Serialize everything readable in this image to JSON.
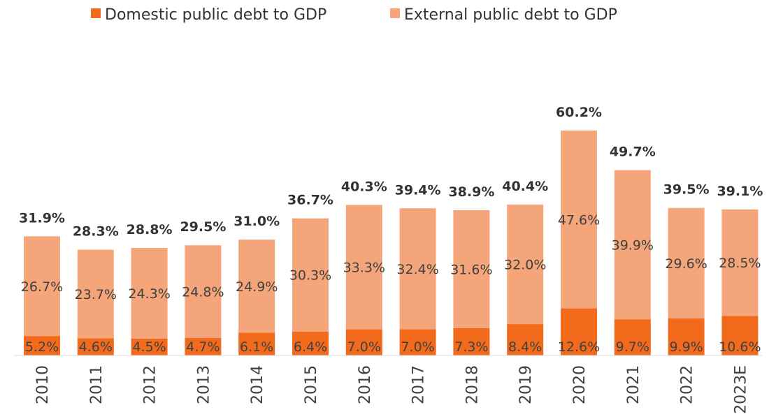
{
  "legend": {
    "domestic_label": "Domestic public debt to GDP",
    "external_label": "External public debt to GDP"
  },
  "chart_data": {
    "type": "bar",
    "stacked": true,
    "categories": [
      "2010",
      "2011",
      "2012",
      "2013",
      "2014",
      "2015",
      "2016",
      "2017",
      "2018",
      "2019",
      "2020",
      "2021",
      "2022",
      "2023E"
    ],
    "series": [
      {
        "name": "Domestic public debt to GDP",
        "color": "#F26B1D",
        "values": [
          5.2,
          4.6,
          4.5,
          4.7,
          6.1,
          6.4,
          7.0,
          7.0,
          7.3,
          8.4,
          12.6,
          9.7,
          9.9,
          10.6
        ],
        "labels": [
          "5.2%",
          "4.6%",
          "4.5%",
          "4.7%",
          "6.1%",
          "6.4%",
          "7.0%",
          "7.0%",
          "7.3%",
          "8.4%",
          "12.6%",
          "9.7%",
          "9.9%",
          "10.6%"
        ]
      },
      {
        "name": "External public debt to GDP",
        "color": "#F4A57A",
        "values": [
          26.7,
          23.7,
          24.3,
          24.8,
          24.9,
          30.3,
          33.3,
          32.4,
          31.6,
          32.0,
          47.6,
          39.9,
          29.6,
          28.5
        ],
        "labels": [
          "26.7%",
          "23.7%",
          "24.3%",
          "24.8%",
          "24.9%",
          "30.3%",
          "33.3%",
          "32.4%",
          "31.6%",
          "32.0%",
          "47.6%",
          "39.9%",
          "29.6%",
          "28.5%"
        ]
      }
    ],
    "totals": [
      31.9,
      28.3,
      28.8,
      29.5,
      31.0,
      36.7,
      40.3,
      39.4,
      38.9,
      40.4,
      60.2,
      49.7,
      39.5,
      39.1
    ],
    "total_labels": [
      "31.9%",
      "28.3%",
      "28.8%",
      "29.5%",
      "31.0%",
      "36.7%",
      "40.3%",
      "39.4%",
      "38.9%",
      "40.4%",
      "60.2%",
      "49.7%",
      "39.5%",
      "39.1%"
    ],
    "legend_position": "top",
    "grid": false,
    "ylim": [
      0,
      60.2
    ]
  }
}
